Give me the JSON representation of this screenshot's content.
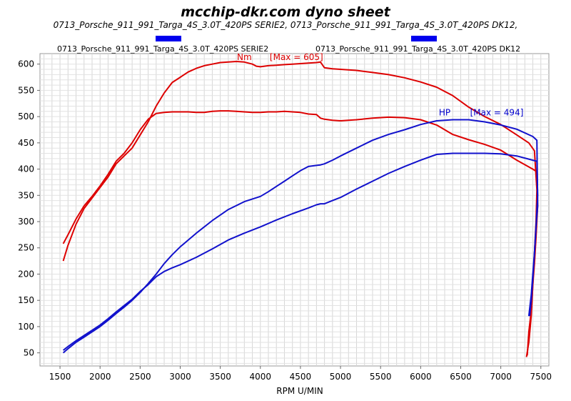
{
  "header": {
    "title": "mcchip-dkr.com dyno sheet",
    "subtitle": "0713_Porsche_911_991_Targa_4S_3.0T_420PS SERIE2, 0713_Porsche_911_991_Targa_4S_3.0T_420PS DK12,",
    "legend": [
      {
        "label": "0713_Porsche_911_991_Targa_4S_3.0T_420PS SERIE2",
        "color": "#0000ee"
      },
      {
        "label": "0713_Porsche_911_991_Targa_4S_3.0T_420PS DK12",
        "color": "#0000ee"
      }
    ]
  },
  "chart_data": {
    "type": "line",
    "title": "mcchip-dkr.com dyno sheet",
    "xlabel": "RPM  U/MIN",
    "ylabel": "",
    "xlim": [
      1250,
      7600
    ],
    "ylim": [
      25,
      620
    ],
    "xticks": [
      1500,
      2000,
      2500,
      3000,
      3500,
      4000,
      4500,
      5000,
      5500,
      6000,
      6500,
      7000,
      7500
    ],
    "yticks": [
      50,
      100,
      150,
      200,
      250,
      300,
      350,
      400,
      450,
      500,
      550,
      600
    ],
    "grid": true,
    "annotations": [
      {
        "text": "Nm",
        "x": 3800,
        "y": 608,
        "color": "#dd0000"
      },
      {
        "text": "[Max = 605]",
        "x": 4450,
        "y": 608,
        "color": "#dd0000"
      },
      {
        "text": "HP",
        "x": 6300,
        "y": 502,
        "color": "#0000cc"
      },
      {
        "text": "[Max = 494]",
        "x": 6950,
        "y": 502,
        "color": "#0000cc"
      }
    ],
    "series": [
      {
        "color": "#dd0000",
        "x": [
          1540,
          1600,
          1700,
          1800,
          1900,
          2000,
          2100,
          2200,
          2300,
          2400,
          2500,
          2600,
          2700,
          2800,
          2900,
          3000,
          3100,
          3200,
          3300,
          3400,
          3500,
          3600,
          3700,
          3800,
          3900,
          3950,
          4000,
          4100,
          4200,
          4300,
          4400,
          4500,
          4600,
          4700,
          4750,
          4800,
          4900,
          5000,
          5200,
          5400,
          5600,
          5800,
          6000,
          6200,
          6400,
          6600,
          6800,
          7000,
          7200,
          7350,
          7420,
          7450,
          7440,
          7420,
          7400,
          7380,
          7350,
          7320
        ],
        "values": [
          225,
          255,
          295,
          325,
          345,
          365,
          385,
          410,
          425,
          440,
          465,
          490,
          520,
          545,
          565,
          575,
          585,
          592,
          597,
          600,
          603,
          604,
          605,
          604,
          600,
          596,
          595,
          597,
          598,
          599,
          600,
          601,
          602,
          603,
          604,
          593,
          591,
          590,
          588,
          584,
          580,
          574,
          566,
          556,
          540,
          518,
          500,
          485,
          465,
          450,
          435,
          360,
          300,
          240,
          180,
          120,
          70,
          42
        ]
      },
      {
        "color": "#dd0000",
        "x": [
          1540,
          1600,
          1700,
          1800,
          1900,
          2000,
          2100,
          2200,
          2300,
          2400,
          2500,
          2600,
          2700,
          2800,
          2900,
          3000,
          3100,
          3200,
          3300,
          3400,
          3500,
          3600,
          3700,
          3800,
          3900,
          4000,
          4100,
          4200,
          4300,
          4400,
          4500,
          4600,
          4700,
          4750,
          4800,
          4900,
          5000,
          5200,
          5400,
          5600,
          5800,
          6000,
          6200,
          6400,
          6600,
          6800,
          7000,
          7200,
          7400,
          7450,
          7460,
          7440,
          7420,
          7400,
          7380,
          7350,
          7330
        ],
        "values": [
          258,
          275,
          305,
          330,
          348,
          368,
          390,
          415,
          430,
          450,
          475,
          495,
          506,
          508,
          509,
          509,
          509,
          508,
          508,
          510,
          511,
          511,
          510,
          509,
          508,
          508,
          509,
          509,
          510,
          509,
          508,
          505,
          504,
          497,
          495,
          493,
          492,
          494,
          497,
          499,
          498,
          494,
          484,
          466,
          456,
          447,
          436,
          417,
          400,
          395,
          330,
          270,
          220,
          180,
          130,
          90,
          45
        ]
      },
      {
        "color": "#1111cc",
        "x": [
          1540,
          1600,
          1700,
          1800,
          1900,
          2000,
          2100,
          2200,
          2300,
          2400,
          2500,
          2600,
          2700,
          2800,
          2900,
          3000,
          3200,
          3400,
          3600,
          3800,
          4000,
          4100,
          4200,
          4300,
          4400,
          4500,
          4600,
          4700,
          4750,
          4800,
          4900,
          5000,
          5200,
          5400,
          5600,
          5800,
          6000,
          6200,
          6400,
          6600,
          6800,
          7000,
          7200,
          7400,
          7450,
          7460,
          7440,
          7420,
          7400,
          7380,
          7350
        ],
        "values": [
          50,
          58,
          70,
          80,
          90,
          100,
          112,
          125,
          137,
          150,
          165,
          182,
          200,
          220,
          237,
          252,
          278,
          302,
          323,
          338,
          348,
          357,
          367,
          377,
          387,
          397,
          405,
          407,
          408,
          410,
          417,
          425,
          440,
          455,
          466,
          475,
          485,
          492,
          494,
          494,
          490,
          484,
          476,
          462,
          455,
          330,
          290,
          240,
          200,
          160,
          120
        ]
      },
      {
        "color": "#1111cc",
        "x": [
          1540,
          1600,
          1700,
          1800,
          1900,
          2000,
          2100,
          2200,
          2300,
          2400,
          2500,
          2600,
          2700,
          2800,
          2900,
          3000,
          3200,
          3400,
          3600,
          3800,
          4000,
          4200,
          4400,
          4600,
          4700,
          4750,
          4800,
          4900,
          5000,
          5200,
          5400,
          5600,
          5800,
          6000,
          6200,
          6400,
          6600,
          6800,
          7000,
          7200,
          7400,
          7450,
          7460,
          7440,
          7420,
          7400,
          7380,
          7360
        ],
        "values": [
          55,
          62,
          73,
          83,
          93,
          103,
          115,
          128,
          140,
          152,
          167,
          180,
          195,
          205,
          212,
          218,
          232,
          248,
          265,
          278,
          290,
          303,
          315,
          326,
          332,
          334,
          334,
          340,
          346,
          362,
          377,
          392,
          405,
          417,
          428,
          430,
          430,
          430,
          429,
          425,
          417,
          415,
          350,
          290,
          240,
          190,
          150,
          120
        ]
      }
    ]
  }
}
